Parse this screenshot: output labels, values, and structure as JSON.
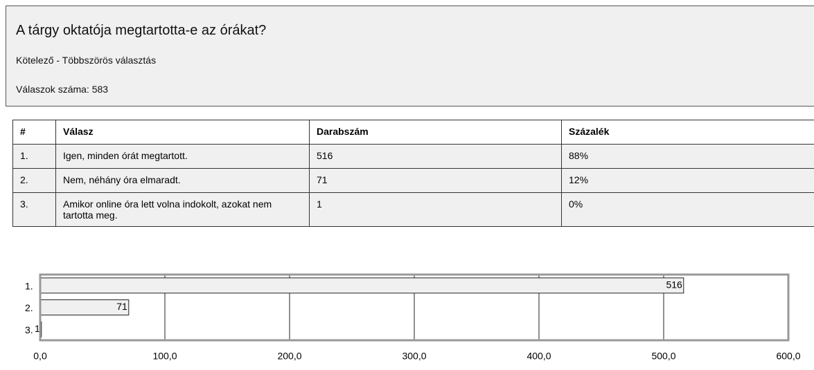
{
  "header": {
    "title": "A tárgy oktatója megtartotta-e az órákat?",
    "subtitle": "Kötelező - Többszörös választás",
    "count_label": "Válaszok száma:",
    "count": 583
  },
  "table": {
    "columns": [
      "#",
      "Válasz",
      "Darabszám",
      "Százalék"
    ],
    "rows": [
      [
        "1.",
        "Igen, minden órát megtartott.",
        516,
        "88%"
      ],
      [
        "2.",
        "Nem, néhány óra elmaradt.",
        71,
        "12%"
      ],
      [
        "3.",
        "Amikor online óra lett volna indokolt, azokat nem tartotta meg.",
        1,
        "0%"
      ]
    ]
  },
  "chart_data": {
    "type": "barh",
    "categories": [
      "1.",
      "2.",
      "3."
    ],
    "values": [
      516,
      71,
      1
    ],
    "color": "#f0f0f0",
    "xlim": [
      0,
      600
    ],
    "xticks": [
      {
        "value": 0,
        "label": "0,0"
      },
      {
        "value": 100,
        "label": "100,0"
      },
      {
        "value": 200,
        "label": "200,0"
      },
      {
        "value": 300,
        "label": "300,0"
      },
      {
        "value": 400,
        "label": "400,0"
      },
      {
        "value": 500,
        "label": "500,0"
      },
      {
        "value": 600,
        "label": "600,0"
      }
    ],
    "grid": true
  }
}
